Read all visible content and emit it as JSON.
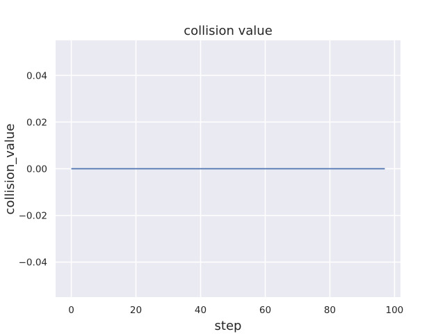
{
  "chart_data": {
    "type": "line",
    "title": "collision value",
    "xlabel": "step",
    "ylabel": "collision_value",
    "xlim": [
      -4.85,
      101.85
    ],
    "ylim": [
      -0.055,
      0.055
    ],
    "x_ticks": [
      0,
      20,
      40,
      60,
      80,
      100
    ],
    "y_ticks": [
      -0.04,
      -0.02,
      0.0,
      0.02,
      0.04
    ],
    "x_tick_labels": [
      "0",
      "20",
      "40",
      "60",
      "80",
      "100"
    ],
    "y_tick_labels": [
      "−0.04",
      "−0.02",
      "0.00",
      "0.02",
      "0.04"
    ],
    "grid": true,
    "series": [
      {
        "x": [
          0,
          97
        ],
        "y": [
          0.0,
          0.0
        ],
        "color": "#4c72b0"
      }
    ],
    "plot_background": "#eaeaf2",
    "grid_color": "#ffffff"
  }
}
